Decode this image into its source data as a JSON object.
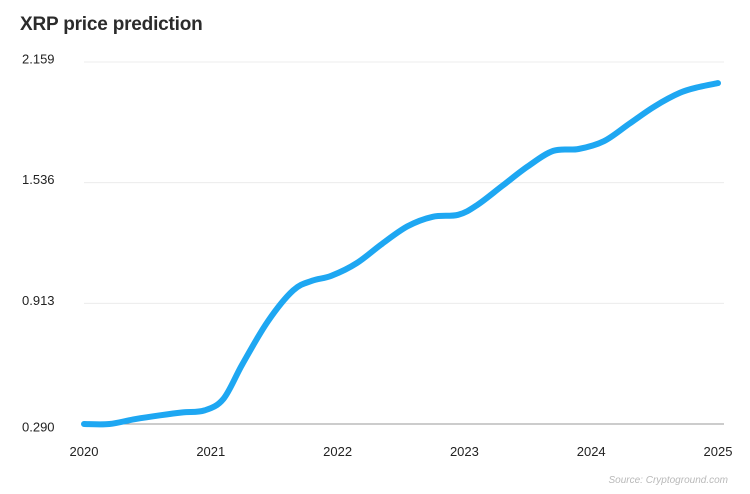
{
  "chart_data": {
    "type": "line",
    "title": "XRP price prediction",
    "source": "Source: Cryptoground.com",
    "yticks": [
      "2.159",
      "1.536",
      "0.913",
      "0.290"
    ],
    "ylim": [
      0.29,
      2.159
    ],
    "xticks": [
      "2020",
      "2021",
      "2022",
      "2023",
      "2024",
      "2025"
    ],
    "xlim": [
      2020,
      2025
    ],
    "grid": true,
    "line_color": "#1ea7f2",
    "series": [
      {
        "x": [
          2020.0,
          2020.2,
          2020.4,
          2020.6,
          2020.78,
          2020.95,
          2021.1,
          2021.25,
          2021.45,
          2021.65,
          2021.8,
          2021.95,
          2022.15,
          2022.35,
          2022.55,
          2022.75,
          2022.95,
          2023.1,
          2023.3,
          2023.5,
          2023.7,
          2023.9,
          2024.1,
          2024.3,
          2024.5,
          2024.7,
          2024.85,
          2025.0
        ],
        "values": [
          0.29,
          0.29,
          0.315,
          0.335,
          0.35,
          0.36,
          0.42,
          0.6,
          0.82,
          0.98,
          1.03,
          1.055,
          1.12,
          1.22,
          1.31,
          1.36,
          1.37,
          1.42,
          1.52,
          1.62,
          1.7,
          1.71,
          1.75,
          1.84,
          1.93,
          2.0,
          2.03,
          2.05
        ]
      }
    ]
  }
}
